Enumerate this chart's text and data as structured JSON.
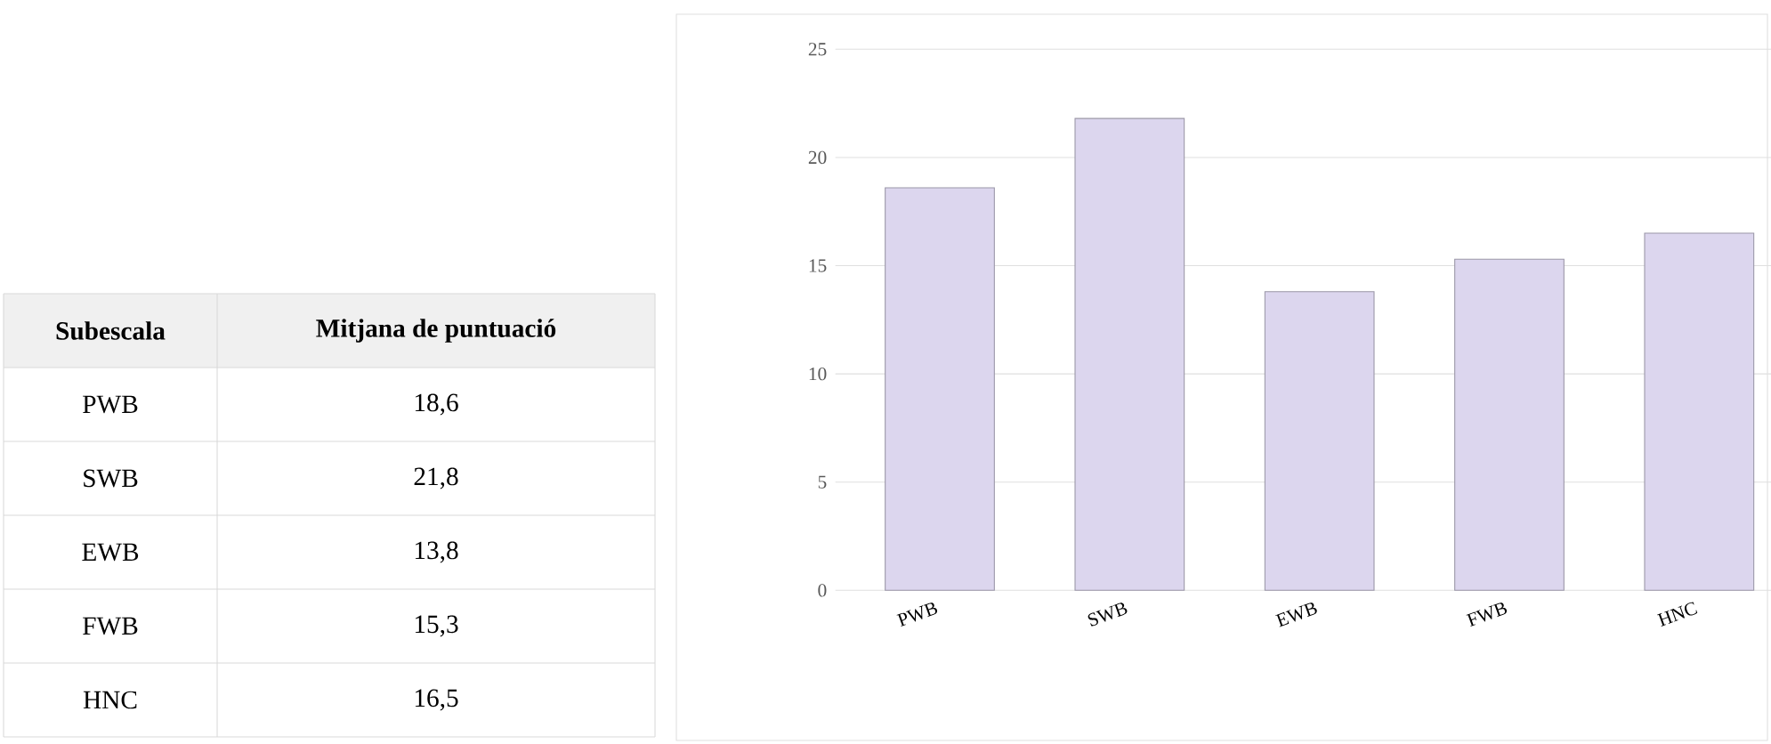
{
  "chart_data": [
    {
      "type": "other",
      "annotations": [
        "Subescala",
        "Mitjana de puntuació",
        "PWB",
        "18,6",
        "SWB",
        "21,8",
        "EWB",
        "13,8",
        "FWB",
        "15,3",
        "HNC",
        "16,5"
      ]
    },
    {
      "type": "bar",
      "categories": [
        "PWB",
        "SWB",
        "EWB",
        "FWB",
        "HNC"
      ],
      "values": [
        18.6,
        21.8,
        13.8,
        15.3,
        16.5
      ],
      "color": "#dcd6ee",
      "ylim": [
        0,
        25
      ],
      "yticks": [
        0,
        5,
        10,
        15,
        20,
        25
      ],
      "grid": "y"
    }
  ]
}
